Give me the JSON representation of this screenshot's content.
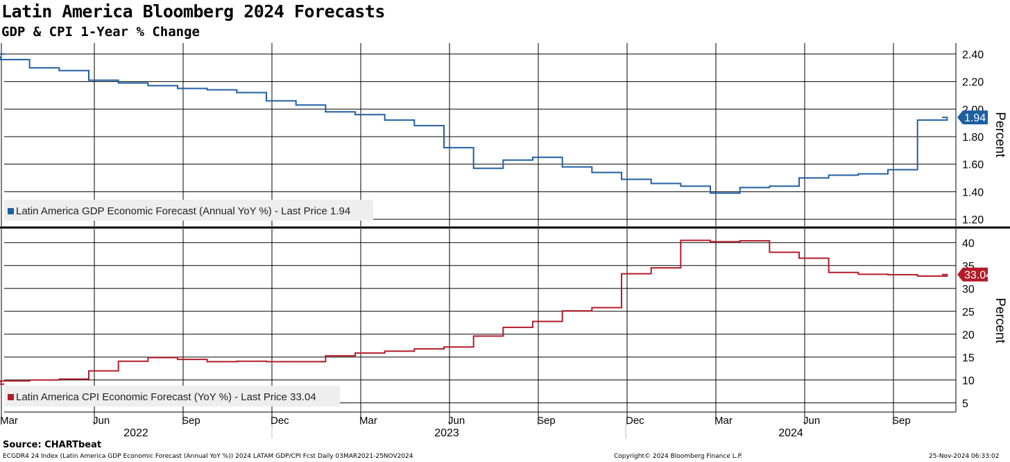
{
  "title": "Latin America Bloomberg 2024 Forecasts",
  "subtitle": "GDP & CPI 1-Year % Change",
  "source": "Source: CHARTbeat",
  "footer": {
    "left": "ECGDR4 24 Index (Latin America GDP Economic Forecast (Annual YoY %)) 2024 LATAM GDP/CPI Fcst  Daily 03MAR2021-25NOV2024",
    "middle": "Copyright© 2024 Bloomberg Finance L.P.",
    "right": "25-Nov-2024 06:33:02"
  },
  "colors": {
    "gdp": "#1f5fa0",
    "cpi": "#b41c2a",
    "grid": "#000000",
    "legend_bg": "#eeeeee"
  },
  "x_axis": {
    "month_ticks": [
      "Mar",
      "Jun",
      "Sep",
      "Dec",
      "Mar",
      "Jun",
      "Sep",
      "Dec",
      "Mar",
      "Jun",
      "Sep"
    ],
    "year_labels": [
      "2022",
      "2023",
      "2024"
    ]
  },
  "chart_data": [
    {
      "type": "line",
      "ylabel": "Percent",
      "ylim": [
        1.15,
        2.48
      ],
      "yticks": [
        "1.20",
        "1.40",
        "1.60",
        "1.80",
        "2.00",
        "2.20",
        "2.40"
      ],
      "grid": true,
      "legend_placement": "bottom-left",
      "legend": "Latin America GDP Economic Forecast (Annual YoY %) - Last Price 1.94",
      "last_value_label": "1.94",
      "series": [
        {
          "name": "Latin America GDP Economic Forecast (Annual YoY %)",
          "x": [
            "2022-01",
            "2022-02",
            "2022-03",
            "2022-04",
            "2022-05",
            "2022-06",
            "2022-07",
            "2022-08",
            "2022-09",
            "2022-10",
            "2022-11",
            "2022-12",
            "2023-01",
            "2023-02",
            "2023-03",
            "2023-04",
            "2023-05",
            "2023-06",
            "2023-07",
            "2023-08",
            "2023-09",
            "2023-10",
            "2023-11",
            "2023-12",
            "2024-01",
            "2024-02",
            "2024-03",
            "2024-04",
            "2024-05",
            "2024-06",
            "2024-07",
            "2024-08",
            "2024-09",
            "2024-10",
            "2024-11"
          ],
          "values": [
            2.4,
            2.38,
            2.36,
            2.3,
            2.28,
            2.21,
            2.19,
            2.17,
            2.15,
            2.14,
            2.12,
            2.06,
            2.03,
            1.98,
            1.96,
            1.92,
            1.88,
            1.72,
            1.57,
            1.63,
            1.65,
            1.58,
            1.54,
            1.49,
            1.46,
            1.44,
            1.39,
            1.43,
            1.44,
            1.5,
            1.52,
            1.53,
            1.56,
            1.92,
            1.94
          ]
        }
      ]
    },
    {
      "type": "line",
      "ylabel": "Percent",
      "ylim": [
        3,
        43
      ],
      "yticks": [
        "5",
        "10",
        "15",
        "20",
        "25",
        "30",
        "35",
        "40"
      ],
      "grid": true,
      "legend_placement": "bottom-left",
      "legend": "Latin America CPI Economic Forecast (YoY %) - Last Price 33.04",
      "last_value_label": "33.04",
      "series": [
        {
          "name": "Latin America CPI Economic Forecast (YoY %)",
          "x": [
            "2022-01",
            "2022-02",
            "2022-03",
            "2022-04",
            "2022-05",
            "2022-06",
            "2022-07",
            "2022-08",
            "2022-09",
            "2022-10",
            "2022-11",
            "2022-12",
            "2023-01",
            "2023-02",
            "2023-03",
            "2023-04",
            "2023-05",
            "2023-06",
            "2023-07",
            "2023-08",
            "2023-09",
            "2023-10",
            "2023-11",
            "2023-12",
            "2024-01",
            "2024-02",
            "2024-03",
            "2024-04",
            "2024-05",
            "2024-06",
            "2024-07",
            "2024-08",
            "2024-09",
            "2024-10",
            "2024-11"
          ],
          "values": [
            9.1,
            9.6,
            9.8,
            10.0,
            10.2,
            12.0,
            14.1,
            14.9,
            14.5,
            14.0,
            14.1,
            14.0,
            14.0,
            15.3,
            15.9,
            16.3,
            16.8,
            17.2,
            19.6,
            21.5,
            22.8,
            25.1,
            25.8,
            33.2,
            34.5,
            40.5,
            40.2,
            40.4,
            37.9,
            36.6,
            33.5,
            33.1,
            33.0,
            32.7,
            33.04
          ]
        }
      ]
    }
  ]
}
